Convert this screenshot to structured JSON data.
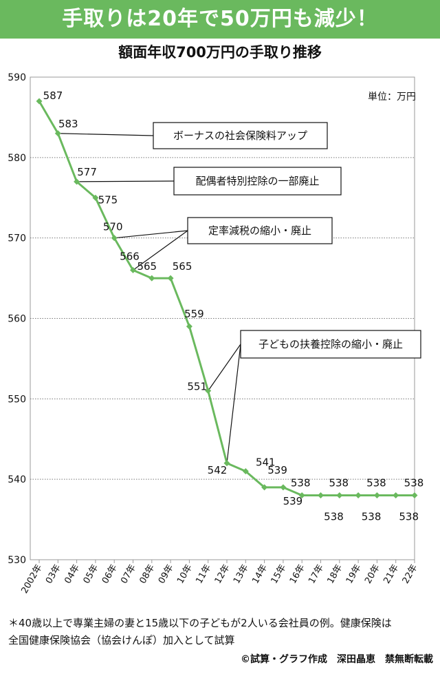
{
  "banner": {
    "title": "手取りは20年で50万円も減少！"
  },
  "chart_data": {
    "type": "line",
    "title": "額面年収700万円の手取り推移",
    "unit_label": "単位：万円",
    "ylim": [
      530,
      590
    ],
    "yticks": [
      530,
      540,
      550,
      560,
      570,
      580,
      590
    ],
    "categories": [
      "2002年",
      "03年",
      "04年",
      "05年",
      "06年",
      "07年",
      "08年",
      "09年",
      "10年",
      "11年",
      "12年",
      "13年",
      "14年",
      "15年",
      "16年",
      "17年",
      "18年",
      "19年",
      "20年",
      "21年",
      "22年"
    ],
    "values": [
      587,
      583,
      577,
      575,
      570,
      566,
      565,
      565,
      559,
      551,
      542,
      541,
      539,
      539,
      538,
      538,
      538,
      538,
      538,
      538,
      538
    ],
    "data_labels": [
      "587",
      "583",
      "577",
      "575",
      "570",
      "566",
      "565",
      "565",
      "559",
      "551",
      "542",
      "541",
      "539",
      "539",
      "538",
      "538",
      "538",
      "538",
      "538",
      "538",
      "538"
    ],
    "grid": true,
    "color": "#6ab95e",
    "annotations": [
      {
        "text": "ボーナスの社会保険料アップ",
        "targets": [
          1
        ]
      },
      {
        "text": "配偶者特別控除の一部廃止",
        "targets": [
          2
        ]
      },
      {
        "text": "定率減税の縮小・廃止",
        "targets": [
          4,
          5
        ]
      },
      {
        "text": "子どもの扶養控除の縮小・廃止",
        "targets": [
          9,
          10
        ]
      }
    ]
  },
  "footnote": {
    "line1": "＊40歳以上で専業主婦の妻と15歳以下の子どもが2人いる会社員の例。健康保険は",
    "line2": "全国健康保険協会（協会けんぽ）加入として試算"
  },
  "credit": "©試算・グラフ作成　深田晶恵　禁無断転載"
}
